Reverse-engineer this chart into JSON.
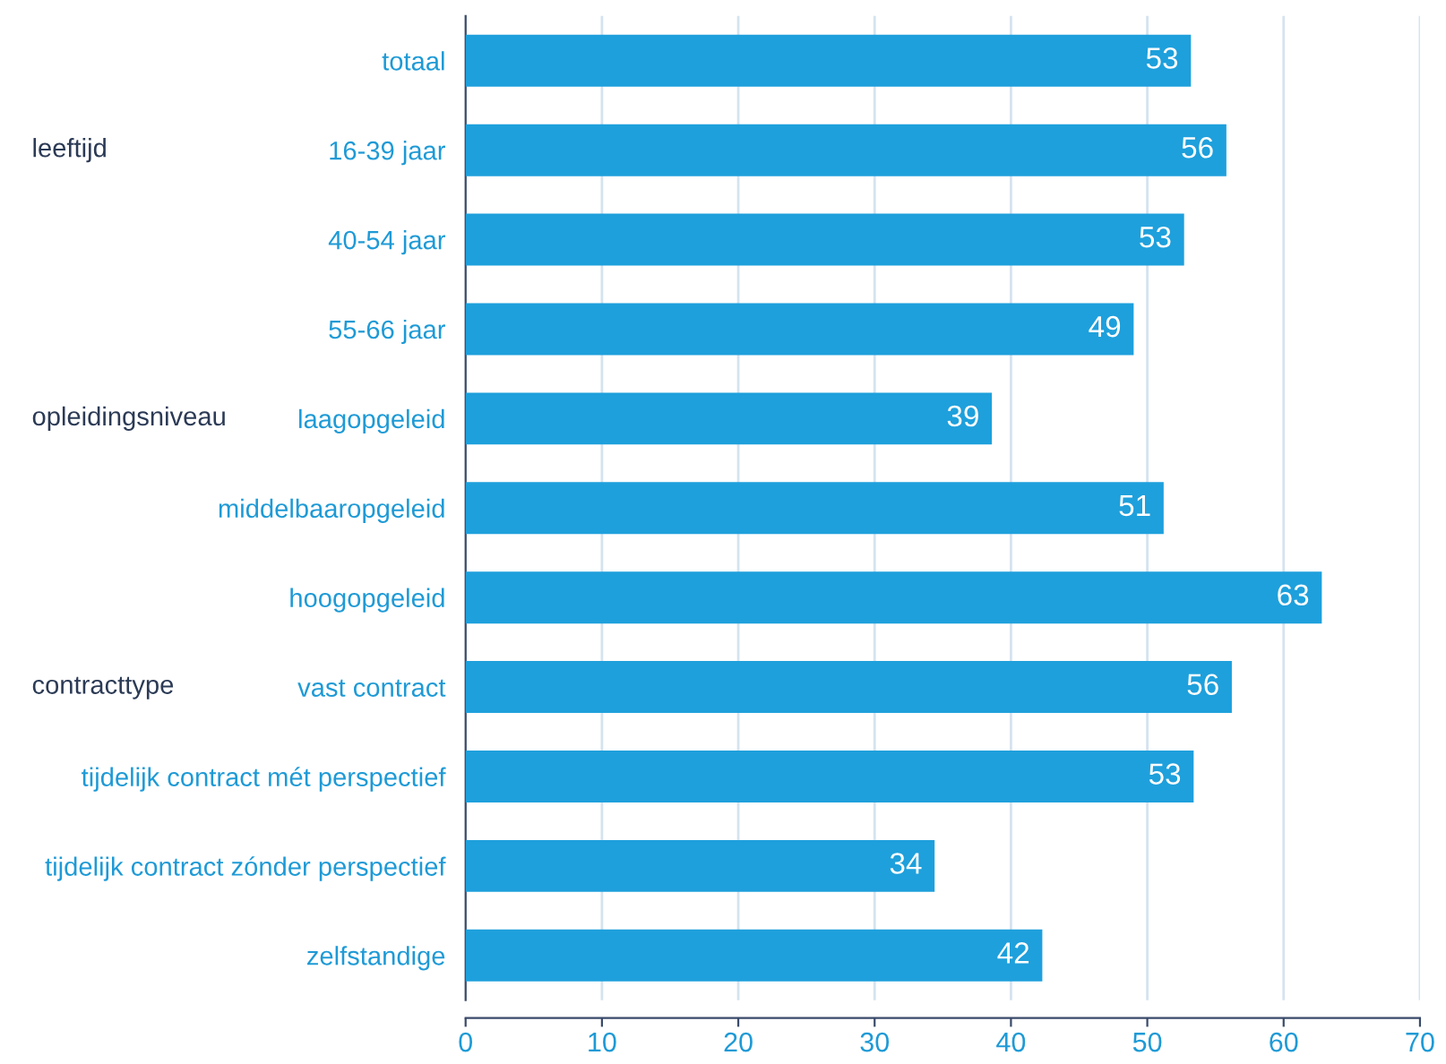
{
  "chart_data": {
    "type": "bar",
    "orientation": "horizontal",
    "categories": [
      "totaal",
      "16-39 jaar",
      "40-54 jaar",
      "55-66 jaar",
      "laagopgeleid",
      "middelbaaropgeleid",
      "hoogopgeleid",
      "vast contract",
      "tijdelijk contract mét perspectief",
      "tijdelijk contract zónder perspectief",
      "zelfstandige"
    ],
    "values": [
      53.2,
      55.8,
      52.7,
      49.0,
      38.6,
      51.2,
      62.8,
      56.2,
      53.4,
      34.4,
      42.3
    ],
    "value_labels": [
      "53",
      "56",
      "53",
      "49",
      "39",
      "51",
      "63",
      "56",
      "53",
      "34",
      "42"
    ],
    "color": "#1ea0dc",
    "xlim": [
      0,
      70
    ],
    "xticks": [
      0,
      10,
      20,
      30,
      40,
      50,
      60,
      70
    ],
    "grid": "x",
    "annotations": [
      "leeftijd",
      "opleidingsniveau",
      "contracttype"
    ]
  }
}
